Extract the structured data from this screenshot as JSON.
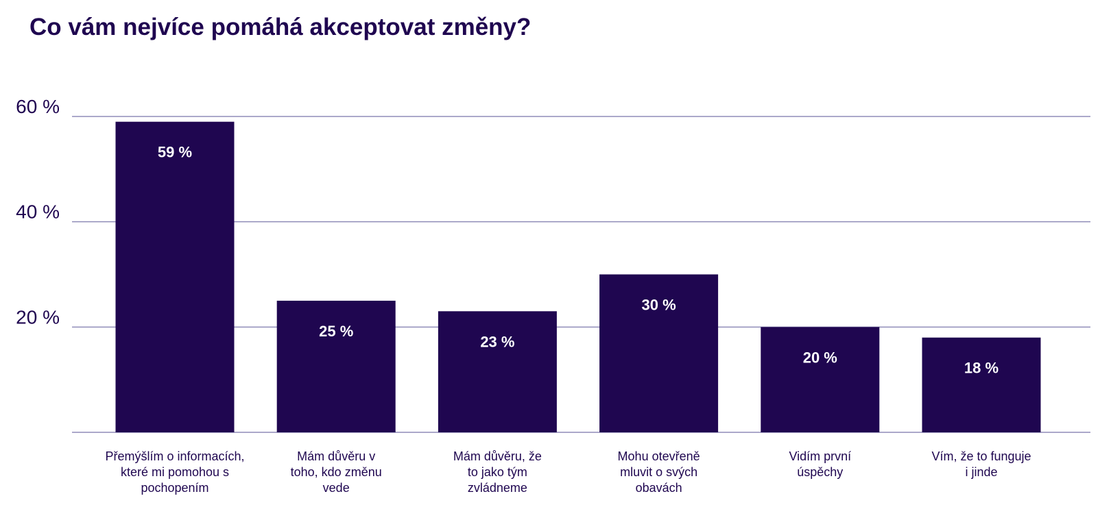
{
  "chart_data": {
    "type": "bar",
    "title": "Co vám nejvíce pomáhá akceptovat změny?",
    "categories": [
      [
        "Přemýšlím o informacích,",
        "které mi pomohou s",
        "pochopením"
      ],
      [
        "Mám důvěru v",
        "toho, kdo změnu",
        "vede"
      ],
      [
        "Mám důvěru, že",
        "to jako tým",
        "zvládneme"
      ],
      [
        "Mohu otevřeně",
        "mluvit o svých",
        "obavách"
      ],
      [
        "Vidím první",
        "úspěchy"
      ],
      [
        "Vím, že to funguje",
        "i jinde"
      ]
    ],
    "values": [
      59,
      25,
      23,
      30,
      20,
      18
    ],
    "data_labels": [
      "59 %",
      "25 %",
      "23 %",
      "30 %",
      "20 %",
      "18 %"
    ],
    "y_ticks": [
      {
        "value": 20,
        "label": "20 %"
      },
      {
        "value": 40,
        "label": "40 %"
      },
      {
        "value": 60,
        "label": "60 %"
      }
    ],
    "ylim": [
      0,
      60
    ],
    "grid": true,
    "legend": "none",
    "xlabel": "",
    "ylabel": "",
    "colors": {
      "bar": "#1f0650",
      "grid": "#8f8cb8",
      "text": "#1f0650",
      "bar_label": "#ffffff"
    }
  }
}
